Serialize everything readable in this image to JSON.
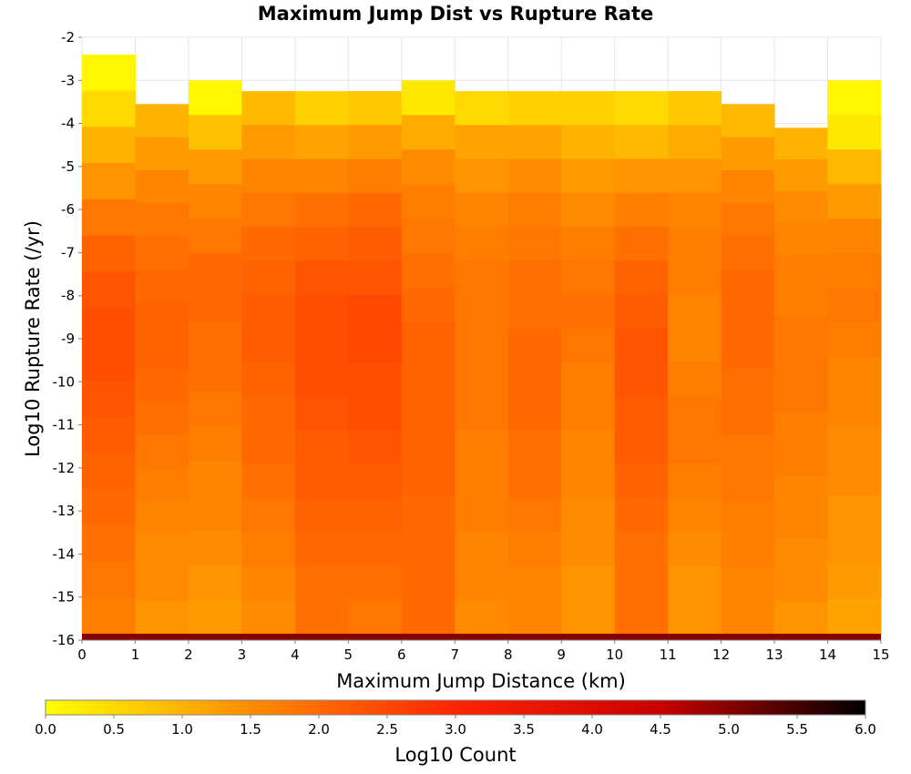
{
  "chart_data": {
    "type": "heatmap",
    "title": "Maximum Jump Dist vs Rupture Rate",
    "xlabel": "Maximum Jump Distance (km)",
    "ylabel": "Log10 Rupture Rate (/yr)",
    "xlim": [
      0,
      15
    ],
    "ylim": [
      -16,
      -2
    ],
    "x_ticks": [
      "0",
      "1",
      "2",
      "3",
      "4",
      "5",
      "6",
      "7",
      "8",
      "9",
      "10",
      "11",
      "12",
      "13",
      "14",
      "15"
    ],
    "y_ticks": [
      "-2",
      "-3",
      "-4",
      "-5",
      "-6",
      "-7",
      "-8",
      "-9",
      "-10",
      "-11",
      "-12",
      "-13",
      "-14",
      "-15",
      "-16"
    ],
    "x_bin_width": 1,
    "y_bin_height": 0.2857,
    "grid": true,
    "colorscale": {
      "label": "Log10 Count",
      "min": 0.0,
      "max": 6.0,
      "ticks": [
        "0.0",
        "0.5",
        "1.0",
        "1.5",
        "2.0",
        "2.5",
        "3.0",
        "3.5",
        "4.0",
        "4.5",
        "5.0",
        "5.5",
        "6.0"
      ],
      "colors": [
        "#ffff00",
        "#ff8c00",
        "#ff2400",
        "#c80000",
        "#000000"
      ]
    },
    "columns": [
      {
        "x": 0,
        "max_rate": -2.4,
        "values": [
          0.1,
          0.5,
          1.0,
          1.4,
          1.8,
          2.1,
          2.3,
          2.4,
          2.4,
          2.3,
          2.2,
          2.1,
          2.0,
          1.9,
          1.8,
          1.7
        ]
      },
      {
        "x": 1,
        "max_rate": -3.55,
        "values": [
          1.0,
          1.3,
          1.6,
          1.8,
          1.9,
          2.0,
          2.1,
          2.1,
          2.0,
          1.9,
          1.8,
          1.7,
          1.6,
          1.5,
          1.5,
          1.4
        ]
      },
      {
        "x": 2,
        "max_rate": -3.0,
        "values": [
          0.1,
          0.8,
          1.3,
          1.6,
          1.8,
          2.0,
          2.0,
          1.9,
          1.9,
          1.8,
          1.7,
          1.6,
          1.6,
          1.5,
          1.4,
          1.3
        ]
      },
      {
        "x": 3,
        "max_rate": -3.25,
        "values": [
          0.9,
          1.3,
          1.6,
          1.8,
          2.0,
          2.1,
          2.2,
          2.2,
          2.1,
          2.0,
          2.0,
          1.9,
          1.8,
          1.7,
          1.6,
          1.5
        ]
      },
      {
        "x": 4,
        "max_rate": -3.25,
        "values": [
          0.6,
          1.2,
          1.6,
          1.9,
          2.1,
          2.3,
          2.4,
          2.4,
          2.4,
          2.3,
          2.2,
          2.2,
          2.1,
          2.0,
          1.9,
          1.9
        ]
      },
      {
        "x": 5,
        "max_rate": -3.25,
        "values": [
          0.7,
          1.3,
          1.7,
          2.0,
          2.2,
          2.3,
          2.5,
          2.5,
          2.4,
          2.4,
          2.3,
          2.2,
          2.1,
          2.0,
          1.9,
          1.8
        ]
      },
      {
        "x": 6,
        "max_rate": -3.0,
        "values": [
          0.3,
          1.1,
          1.5,
          1.7,
          1.8,
          1.9,
          2.0,
          2.1,
          2.1,
          2.1,
          2.1,
          2.1,
          2.0,
          2.0,
          2.0,
          2.0
        ]
      },
      {
        "x": 7,
        "max_rate": -3.25,
        "values": [
          0.5,
          1.2,
          1.4,
          1.6,
          1.7,
          1.8,
          1.8,
          1.8,
          1.8,
          1.8,
          1.7,
          1.7,
          1.7,
          1.6,
          1.6,
          1.5
        ]
      },
      {
        "x": 8,
        "max_rate": -3.25,
        "values": [
          0.6,
          1.2,
          1.5,
          1.7,
          1.8,
          1.9,
          1.9,
          2.0,
          2.0,
          2.0,
          1.9,
          1.9,
          1.8,
          1.7,
          1.6,
          1.6
        ]
      },
      {
        "x": 9,
        "max_rate": -3.25,
        "values": [
          0.6,
          1.0,
          1.3,
          1.5,
          1.7,
          1.8,
          1.9,
          1.8,
          1.7,
          1.7,
          1.6,
          1.6,
          1.5,
          1.5,
          1.4,
          1.4
        ]
      },
      {
        "x": 10,
        "max_rate": -3.25,
        "values": [
          0.5,
          0.9,
          1.4,
          1.7,
          1.9,
          2.1,
          2.2,
          2.3,
          2.3,
          2.2,
          2.2,
          2.1,
          2.0,
          1.9,
          1.9,
          1.9
        ]
      },
      {
        "x": 11,
        "max_rate": -3.25,
        "values": [
          0.7,
          1.1,
          1.4,
          1.6,
          1.7,
          1.7,
          1.6,
          1.6,
          1.7,
          1.8,
          1.8,
          1.7,
          1.6,
          1.5,
          1.4,
          1.4
        ]
      },
      {
        "x": 12,
        "max_rate": -3.55,
        "values": [
          0.9,
          1.3,
          1.6,
          1.8,
          1.9,
          2.0,
          2.0,
          2.0,
          1.9,
          1.9,
          1.8,
          1.8,
          1.7,
          1.7,
          1.6,
          1.6
        ]
      },
      {
        "x": 13,
        "max_rate": -4.1,
        "values": [
          1.0,
          1.3,
          1.5,
          1.6,
          1.7,
          1.7,
          1.8,
          1.8,
          1.8,
          1.7,
          1.7,
          1.6,
          1.6,
          1.5,
          1.5,
          1.4
        ]
      },
      {
        "x": 14,
        "max_rate": -3.0,
        "values": [
          0.1,
          0.3,
          0.9,
          1.3,
          1.6,
          1.7,
          1.8,
          1.7,
          1.6,
          1.6,
          1.5,
          1.5,
          1.4,
          1.4,
          1.3,
          1.2
        ]
      }
    ],
    "bottom_band": {
      "y_range": [
        -16.0,
        -15.85
      ],
      "log10_count": 5.0
    }
  }
}
